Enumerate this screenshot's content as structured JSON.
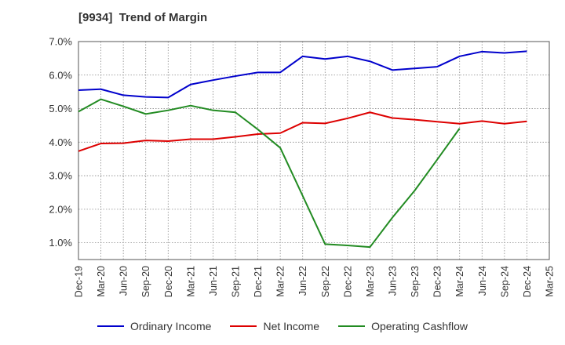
{
  "chart_data": {
    "type": "line",
    "title": "[9934]  Trend of Margin",
    "xlabel": "",
    "ylabel": "",
    "x": [
      "Dec-19",
      "Mar-20",
      "Jun-20",
      "Sep-20",
      "Dec-20",
      "Mar-21",
      "Jun-21",
      "Sep-21",
      "Dec-21",
      "Mar-22",
      "Jun-22",
      "Sep-22",
      "Dec-22",
      "Mar-23",
      "Jun-23",
      "Sep-23",
      "Dec-23",
      "Mar-24",
      "Jun-24",
      "Sep-24",
      "Dec-24",
      "Mar-25"
    ],
    "ylim": [
      0.5,
      7.0
    ],
    "yticks": [
      1.0,
      2.0,
      3.0,
      4.0,
      5.0,
      6.0,
      7.0
    ],
    "ytick_labels": [
      "1.0%",
      "2.0%",
      "3.0%",
      "4.0%",
      "5.0%",
      "6.0%",
      "7.0%"
    ],
    "grid": true,
    "legend_position": "bottom",
    "series": [
      {
        "name": "Ordinary Income",
        "color": "#0000cc",
        "values": [
          5.55,
          5.58,
          5.4,
          5.35,
          5.33,
          5.72,
          5.85,
          5.97,
          6.08,
          6.08,
          6.56,
          6.48,
          6.56,
          6.41,
          6.15,
          6.2,
          6.25,
          6.56,
          6.7,
          6.66,
          6.71,
          null
        ]
      },
      {
        "name": "Net Income",
        "color": "#dd0000",
        "values": [
          3.73,
          3.96,
          3.97,
          4.05,
          4.03,
          4.09,
          4.09,
          4.16,
          4.24,
          4.27,
          4.58,
          4.56,
          4.71,
          4.89,
          4.72,
          4.67,
          4.61,
          4.55,
          4.63,
          4.55,
          4.62,
          null
        ]
      },
      {
        "name": "Operating Cashflow",
        "color": "#228b22",
        "values": [
          4.91,
          5.28,
          5.07,
          4.84,
          4.95,
          5.09,
          4.95,
          4.89,
          4.38,
          3.83,
          2.4,
          0.96,
          0.92,
          0.87,
          1.75,
          2.56,
          3.48,
          4.41,
          null,
          null,
          null,
          null
        ]
      }
    ]
  }
}
